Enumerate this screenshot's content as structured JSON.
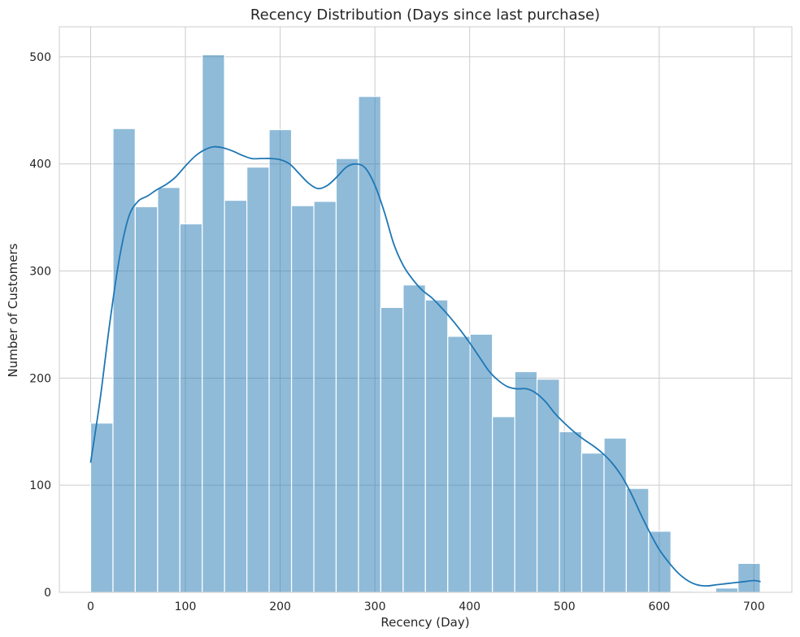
{
  "chart_data": {
    "type": "bar",
    "title": "Recency Distribution (Days since last purchase)",
    "xlabel": "Recency (Day)",
    "ylabel": "Number of Customers",
    "xlim": [
      -33,
      740
    ],
    "ylim": [
      0,
      528
    ],
    "xticks": [
      0,
      100,
      200,
      300,
      400,
      500,
      600,
      700
    ],
    "yticks": [
      0,
      100,
      200,
      300,
      400,
      500
    ],
    "grid": true,
    "bar_color": "#1f77b4",
    "bar_opacity": 0.5,
    "bar_edge_color": "#ffffff",
    "kde_color": "#1f77b4",
    "bins": [
      {
        "x0": 0.0,
        "x1": 23.6,
        "count": 158
      },
      {
        "x0": 23.6,
        "x1": 47.1,
        "count": 433
      },
      {
        "x0": 47.1,
        "x1": 70.7,
        "count": 360
      },
      {
        "x0": 70.7,
        "x1": 94.2,
        "count": 378
      },
      {
        "x0": 94.2,
        "x1": 117.8,
        "count": 344
      },
      {
        "x0": 117.8,
        "x1": 141.3,
        "count": 502
      },
      {
        "x0": 141.3,
        "x1": 164.9,
        "count": 366
      },
      {
        "x0": 164.9,
        "x1": 188.4,
        "count": 397
      },
      {
        "x0": 188.4,
        "x1": 212.0,
        "count": 432
      },
      {
        "x0": 212.0,
        "x1": 235.6,
        "count": 361
      },
      {
        "x0": 235.6,
        "x1": 259.1,
        "count": 365
      },
      {
        "x0": 259.1,
        "x1": 282.7,
        "count": 405
      },
      {
        "x0": 282.7,
        "x1": 306.2,
        "count": 463
      },
      {
        "x0": 306.2,
        "x1": 329.8,
        "count": 266
      },
      {
        "x0": 329.8,
        "x1": 353.3,
        "count": 287
      },
      {
        "x0": 353.3,
        "x1": 376.9,
        "count": 273
      },
      {
        "x0": 376.9,
        "x1": 400.4,
        "count": 239
      },
      {
        "x0": 400.4,
        "x1": 424.0,
        "count": 241
      },
      {
        "x0": 424.0,
        "x1": 447.6,
        "count": 164
      },
      {
        "x0": 447.6,
        "x1": 471.1,
        "count": 206
      },
      {
        "x0": 471.1,
        "x1": 494.7,
        "count": 199
      },
      {
        "x0": 494.7,
        "x1": 518.2,
        "count": 150
      },
      {
        "x0": 518.2,
        "x1": 541.8,
        "count": 130
      },
      {
        "x0": 541.8,
        "x1": 565.3,
        "count": 144
      },
      {
        "x0": 565.3,
        "x1": 588.9,
        "count": 97
      },
      {
        "x0": 588.9,
        "x1": 612.4,
        "count": 57
      },
      {
        "x0": 612.4,
        "x1": 636.0,
        "count": 1
      },
      {
        "x0": 636.0,
        "x1": 659.6,
        "count": 0
      },
      {
        "x0": 659.6,
        "x1": 683.1,
        "count": 4
      },
      {
        "x0": 683.1,
        "x1": 706.7,
        "count": 27
      }
    ],
    "kde": {
      "x": [
        0,
        10,
        20,
        30,
        40,
        50,
        60,
        70,
        80,
        90,
        100,
        110,
        120,
        130,
        140,
        150,
        160,
        170,
        180,
        190,
        200,
        210,
        220,
        230,
        240,
        250,
        260,
        270,
        280,
        290,
        300,
        310,
        320,
        330,
        340,
        350,
        360,
        370,
        380,
        390,
        400,
        410,
        420,
        430,
        440,
        450,
        460,
        470,
        480,
        490,
        500,
        510,
        520,
        530,
        540,
        550,
        560,
        570,
        580,
        590,
        600,
        610,
        620,
        630,
        640,
        650,
        660,
        670,
        680,
        690,
        700,
        707
      ],
      "y": [
        121,
        180,
        250,
        310,
        350,
        365,
        370,
        376,
        381,
        388,
        398,
        407,
        413,
        416,
        415,
        412,
        408,
        405,
        405,
        405,
        404,
        400,
        391,
        382,
        377,
        380,
        388,
        397,
        400,
        396,
        380,
        355,
        325,
        305,
        292,
        282,
        275,
        266,
        256,
        245,
        233,
        220,
        207,
        198,
        192,
        190,
        190,
        186,
        178,
        167,
        158,
        150,
        143,
        137,
        130,
        121,
        109,
        93,
        74,
        56,
        40,
        28,
        18,
        11,
        7,
        6,
        7,
        8,
        9,
        10,
        11,
        10
      ]
    }
  }
}
